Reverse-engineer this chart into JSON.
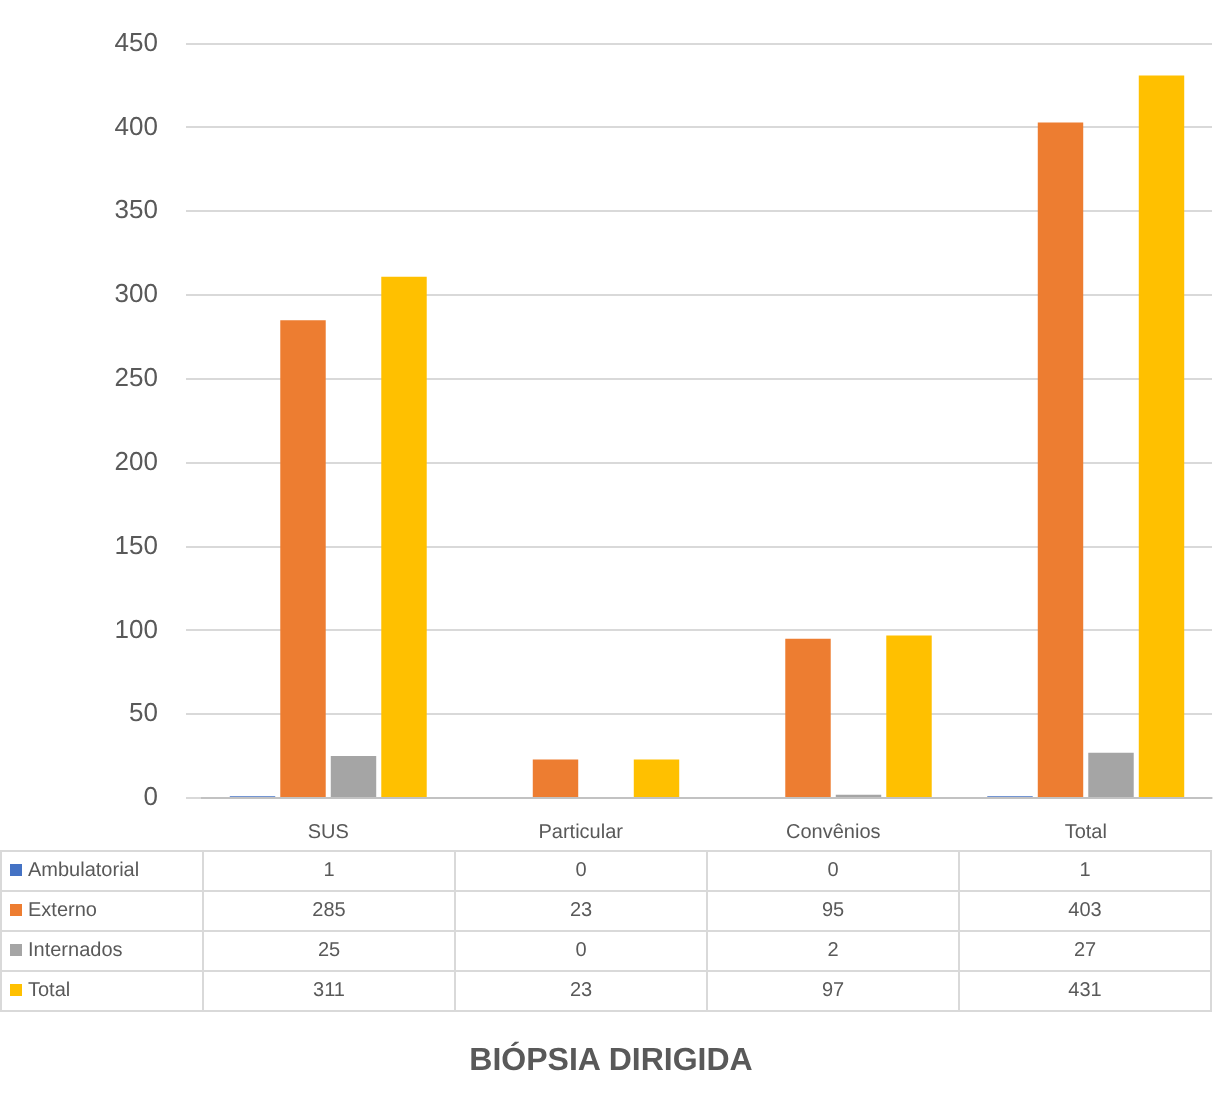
{
  "chart_data": {
    "type": "bar",
    "title": "BIÓPSIA DIRIGIDA",
    "categories": [
      "SUS",
      "Particular",
      "Convênios",
      "Total"
    ],
    "series": [
      {
        "name": "Ambulatorial",
        "color": "#4472c4",
        "values": [
          1,
          0,
          0,
          1
        ]
      },
      {
        "name": "Externo",
        "color": "#ed7d31",
        "values": [
          285,
          23,
          95,
          403
        ]
      },
      {
        "name": "Internados",
        "color": "#a5a5a5",
        "values": [
          25,
          0,
          2,
          27
        ]
      },
      {
        "name": "Total",
        "color": "#ffc000",
        "values": [
          311,
          23,
          97,
          431
        ]
      }
    ],
    "ylim": [
      0,
      450
    ],
    "yticks": [
      0,
      50,
      100,
      150,
      200,
      250,
      300,
      350,
      400,
      450
    ],
    "grid": "y",
    "legend": "bottom",
    "data_labels": true
  }
}
